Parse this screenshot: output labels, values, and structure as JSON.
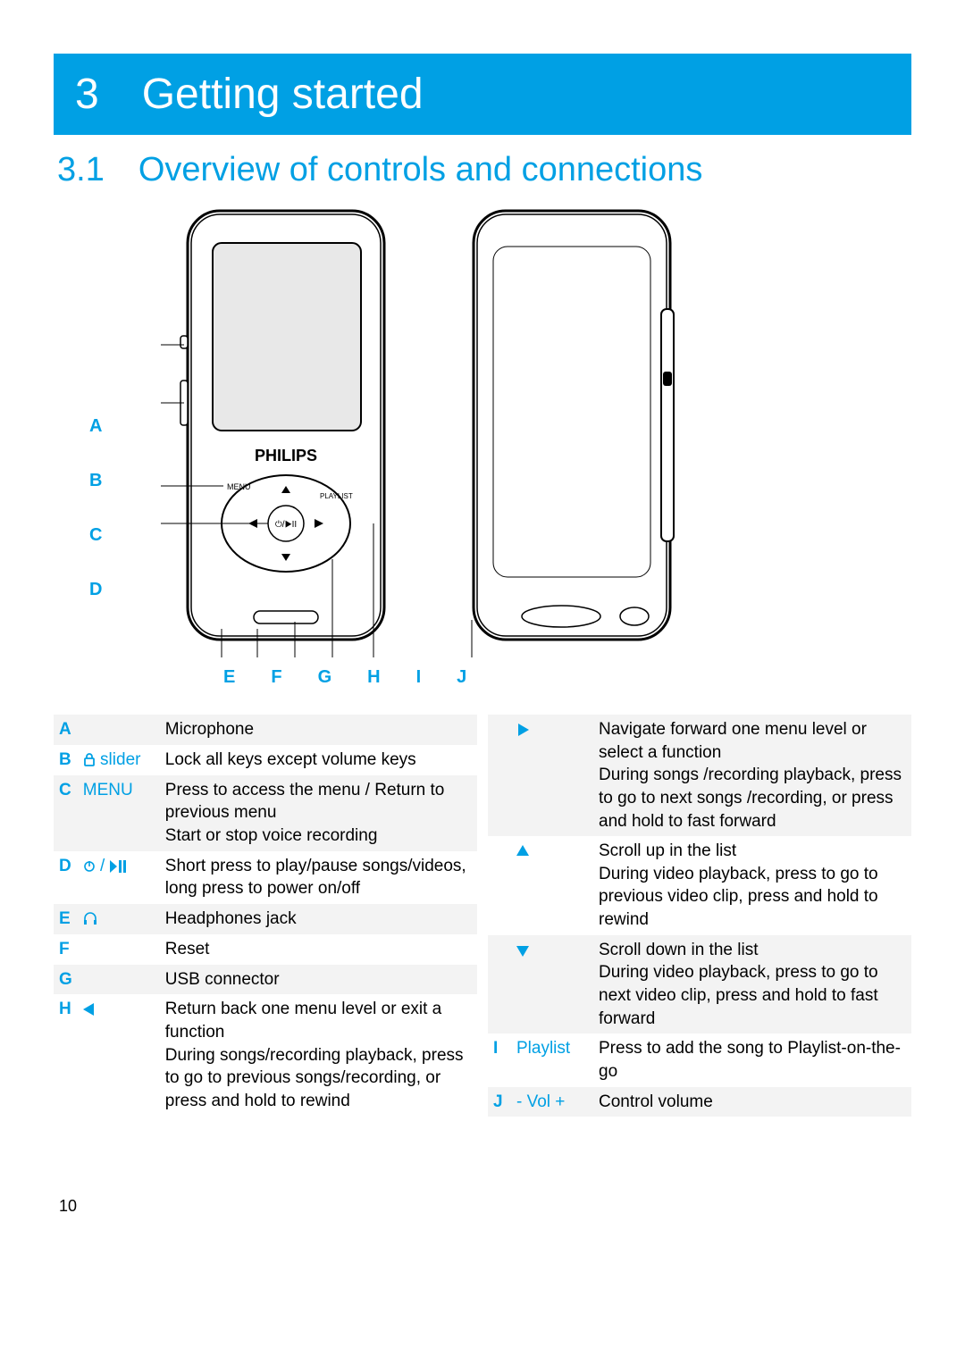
{
  "accent_color": "#00a0e4",
  "table_stripe_color": "#f3f3f3",
  "chapter_text": "3 Getting started",
  "section_text": "3.1 Overview of controls and connections",
  "page_number": "10",
  "diagram": {
    "device_logo": "PHILIPS",
    "menu_label": "MENU",
    "playlist_label": "PLAYLIST",
    "side_letters": [
      "A",
      "B",
      "C",
      "D"
    ],
    "bottom_letters": [
      "E",
      "F",
      "G",
      "H",
      "I",
      "J"
    ]
  },
  "left_table": [
    {
      "letter": "A",
      "symbol": "",
      "desc": "Microphone"
    },
    {
      "letter": "B",
      "symbol": "lock slider",
      "desc": "Lock all keys except volume keys"
    },
    {
      "letter": "C",
      "symbol": "MENU",
      "desc": "Press to access the menu / Return to previous menu\nStart or stop voice recording"
    },
    {
      "letter": "D",
      "symbol": "power / play",
      "desc": "Short press to play/pause songs/videos, long press to power on/off"
    },
    {
      "letter": "E",
      "symbol": "headphones",
      "desc": "Headphones jack"
    },
    {
      "letter": "F",
      "symbol": "",
      "desc": "Reset"
    },
    {
      "letter": "G",
      "symbol": "",
      "desc": "USB connector"
    },
    {
      "letter": "H",
      "symbol": "left",
      "desc": "Return back one menu level or exit a function\nDuring songs/recording playback, press to go to previous songs/recording, or press and hold to rewind"
    }
  ],
  "right_table": [
    {
      "letter": "",
      "symbol": "right",
      "desc": "Navigate forward one menu level or select a function\nDuring songs /recording playback, press to go to next songs /recording, or press and hold to fast forward"
    },
    {
      "letter": "",
      "symbol": "up",
      "desc": "Scroll up in the list\nDuring video playback, press to go to previous video clip, press and hold to rewind"
    },
    {
      "letter": "",
      "symbol": "down",
      "desc": "Scroll down in the list\nDuring video playback, press to go to next video clip, press and hold to fast forward"
    },
    {
      "letter": "I",
      "symbol": "Playlist",
      "desc": "Press to add the song to Playlist-on-the-go"
    },
    {
      "letter": "J",
      "symbol": "- Vol +",
      "desc": "Control volume"
    }
  ]
}
